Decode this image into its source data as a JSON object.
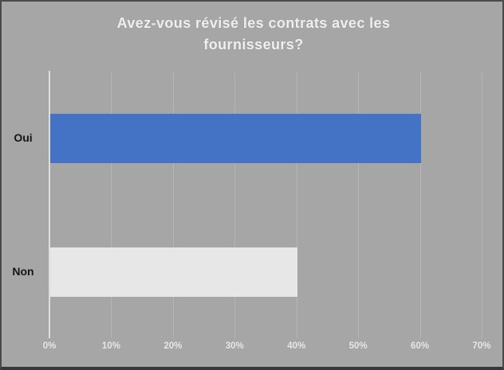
{
  "chart_data": {
    "type": "bar",
    "orientation": "horizontal",
    "title": "Avez-vous révisé les contrats avec les fournisseurs?",
    "categories": [
      "Oui",
      "Non"
    ],
    "values": [
      60,
      40
    ],
    "value_unit": "%",
    "xlabel": "",
    "ylabel": "",
    "xlim": [
      0,
      70
    ],
    "x_tick_values": [
      0,
      10,
      20,
      30,
      40,
      50,
      60,
      70
    ],
    "x_tick_labels": [
      "0%",
      "10%",
      "20%",
      "30%",
      "40%",
      "50%",
      "60%",
      "70%"
    ],
    "grid": true,
    "legend": false,
    "colors": {
      "background": "#a6a6a6",
      "bar_oui": "#4472c4",
      "bar_non": "#e8e7e7",
      "title_text": "#efefef",
      "axis_tick_text": "#e6e6e6",
      "category_text": "#161616",
      "gridline": "#b5b5b5",
      "axis_line": "#dedede",
      "border": "#4a4a4a"
    }
  }
}
